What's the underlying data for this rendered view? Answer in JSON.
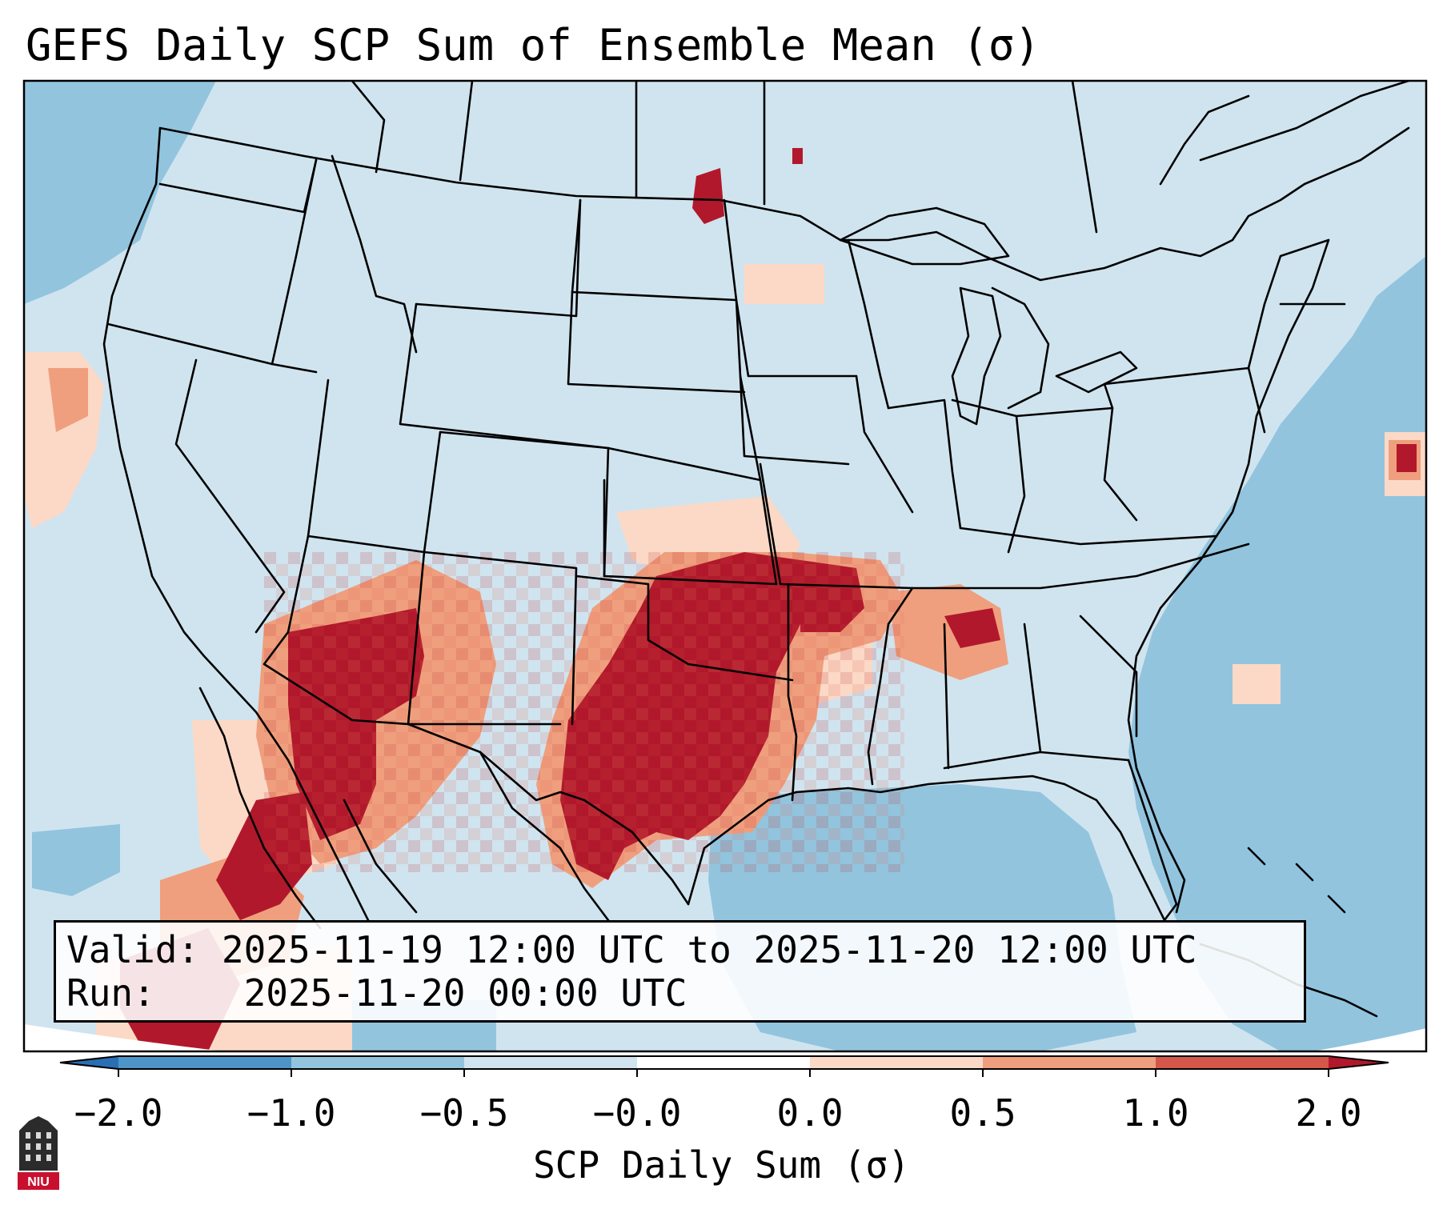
{
  "title": "GEFS Daily SCP Sum of Ensemble Mean (σ)",
  "info": {
    "valid_label": "Valid:",
    "valid_value": "2025-11-19 12:00 UTC to 2025-11-20 12:00 UTC",
    "run_label": "Run:",
    "run_value": "2025-11-20 00:00 UTC"
  },
  "colorbar": {
    "label": "SCP Daily Sum (σ)",
    "ticks": [
      "−2.0",
      "−1.0",
      "−0.5",
      "−0.0",
      "0.0",
      "0.5",
      "1.0",
      "2.0"
    ],
    "colors": [
      "#2a6fb3",
      "#4d94c8",
      "#92c4de",
      "#d0e4ef",
      "#fbd9c6",
      "#ef9f7d",
      "#d4574a",
      "#b2182b"
    ],
    "extend": "both"
  },
  "map": {
    "background_color": "#d0e4ef",
    "ocean_negative_color": "#92c4de",
    "outline_color": "#000000"
  },
  "logo": {
    "text": "NIU",
    "color": "#c8102e"
  }
}
